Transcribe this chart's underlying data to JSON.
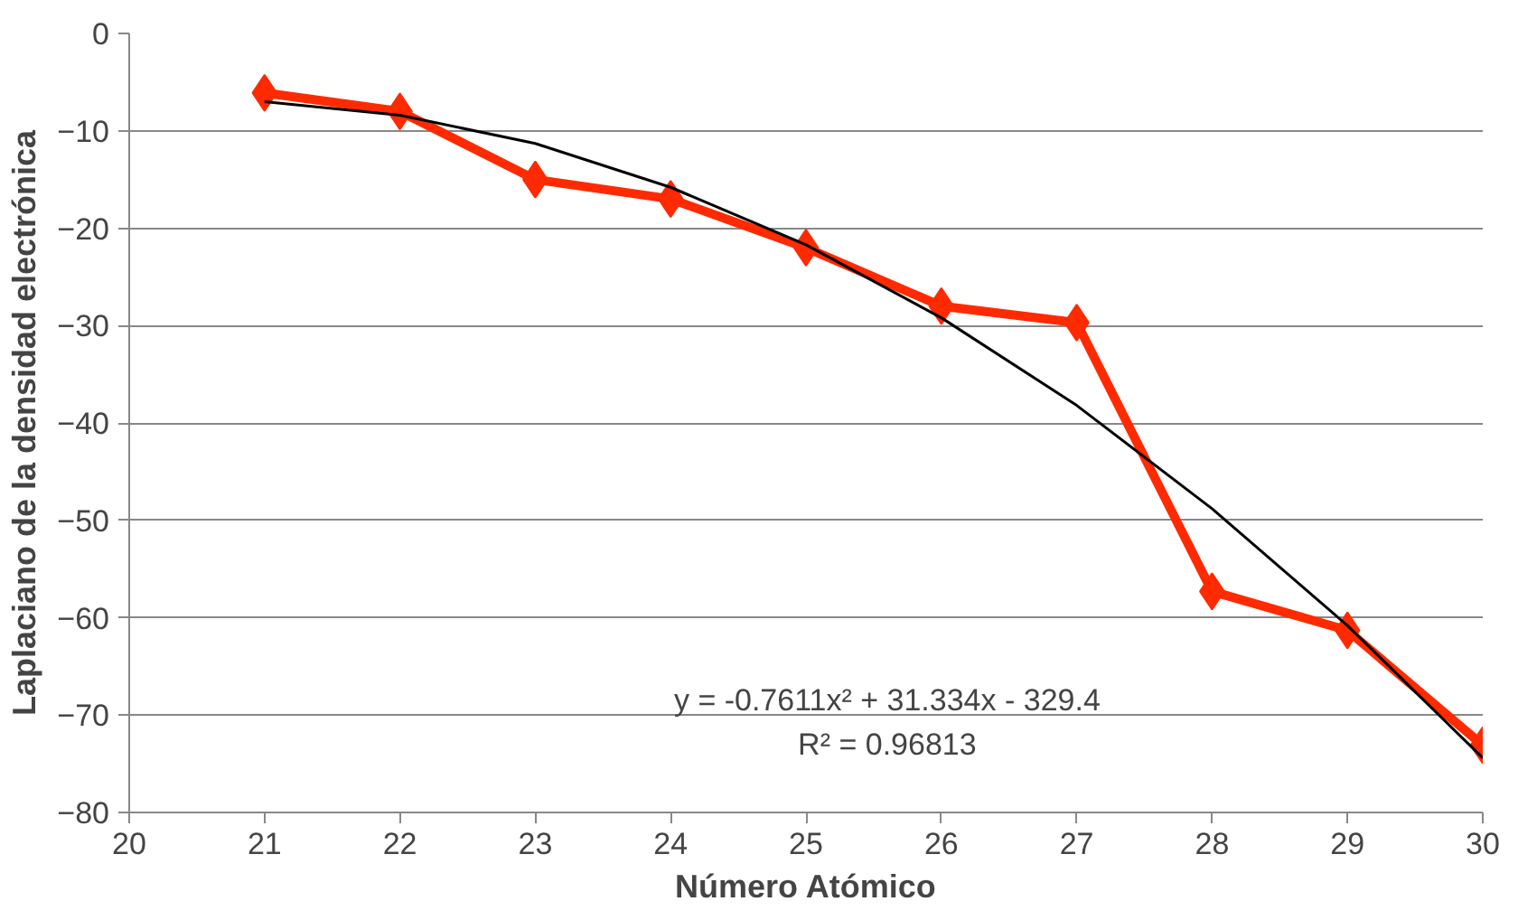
{
  "chart_data": {
    "type": "line",
    "xlabel": "Número Atómico",
    "ylabel": "Laplaciano de la densidad electrónica",
    "x": [
      21,
      22,
      23,
      24,
      25,
      26,
      27,
      28,
      29,
      30
    ],
    "series": [
      {
        "color": "#ff2a00",
        "values": [
          -6.1,
          -8,
          -15,
          -17,
          -22,
          -28,
          -29.7,
          -57.3,
          -61.3,
          -73.1
        ],
        "marker": "diamond"
      },
      {
        "type": "line",
        "color": "#000000",
        "x": [
          21,
          22,
          23,
          24,
          25,
          26,
          27,
          28,
          29,
          30
        ],
        "values": [
          -7.0,
          -8.4,
          -11.3,
          -15.8,
          -21.7,
          -29.2,
          -38.2,
          -48.8,
          -60.8,
          -74.4
        ],
        "marker": "none"
      }
    ],
    "xlim": [
      20,
      30
    ],
    "xticks": [
      20,
      21,
      22,
      23,
      24,
      25,
      26,
      27,
      28,
      29,
      30
    ],
    "ylim": [
      -80,
      0
    ],
    "yticks": [
      -80,
      -70,
      -60,
      -50,
      -40,
      -30,
      -20,
      -10,
      0
    ],
    "grid": "y",
    "annotations": [
      "y = -0.7611x² + 31.334x - 329.4",
      "R² = 0.96813"
    ]
  }
}
